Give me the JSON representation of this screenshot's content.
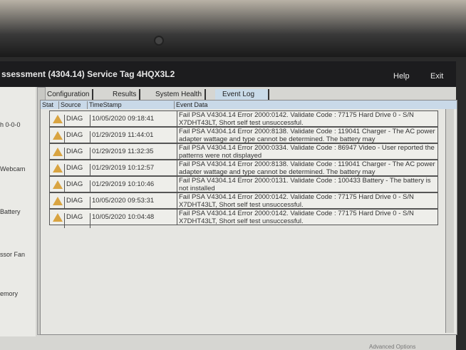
{
  "title": "ssessment (4304.14)  Service Tag 4HQX3L2",
  "header": {
    "help": "Help",
    "exit": "Exit"
  },
  "sidebar": [
    "h 0-0-0",
    "Webcam",
    "Battery",
    "ssor Fan",
    "emory"
  ],
  "tabs": [
    {
      "label": "Configuration"
    },
    {
      "label": "Results"
    },
    {
      "label": "System Health"
    },
    {
      "label": "Event Log",
      "active": true
    }
  ],
  "columns": [
    "Stat",
    "Source",
    "TimeStamp",
    "Event Data"
  ],
  "rows": [
    {
      "icon": "warning-icon",
      "source": "DIAG",
      "time": "10/05/2020 09:18:41",
      "data": "Fail PSA V4304.14 Error 2000:0142.  Validate Code : 77175  Hard Drive 0 - S/N X7DHT43LT, Short self test unsuccessful."
    },
    {
      "icon": "warning-icon",
      "source": "DIAG",
      "time": "01/29/2019 11:44:01",
      "data": "Fail PSA V4304.14 Error 2000:8138.  Validate Code : 119041  Charger - The AC power adapter wattage and type cannot be determined. The battery may"
    },
    {
      "icon": "warning-icon",
      "source": "DIAG",
      "time": "01/29/2019 11:32:35",
      "data": "Fail PSA V4304.14 Error 2000:0334.  Validate Code : 86947  Video - User reported the patterns were not displayed"
    },
    {
      "icon": "warning-icon",
      "source": "DIAG",
      "time": "01/29/2019 10:12:57",
      "data": "Fail PSA V4304.14 Error 2000:8138.  Validate Code : 119041  Charger - The AC power adapter wattage and type cannot be determined. The battery may"
    },
    {
      "icon": "warning-icon",
      "source": "DIAG",
      "time": "01/29/2019 10:10:46",
      "data": "Fail PSA V4304.14 Error 2000:0131.  Validate Code : 100433  Battery - The battery is not installed"
    },
    {
      "icon": "warning-icon",
      "source": "DIAG",
      "time": "10/05/2020 09:53:31",
      "data": "Fail PSA V4304.14 Error 2000:0142.  Validate Code : 77175  Hard Drive 0 - S/N X7DHT43LT, Short self test unsuccessful."
    },
    {
      "icon": "warning-icon",
      "source": "DIAG",
      "time": "10/05/2020 10:04:48",
      "data": "Fail PSA V4304.14 Error 2000:0142.  Validate Code : 77175  Hard Drive 0 - S/N X7DHT43LT, Short self test unsuccessful."
    }
  ],
  "footer": "Advanced Options"
}
